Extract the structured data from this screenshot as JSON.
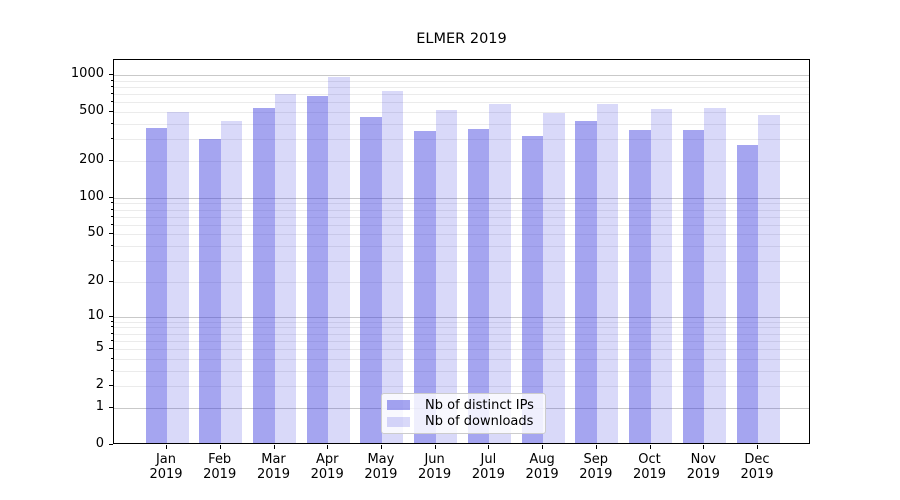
{
  "chart_data": {
    "type": "bar",
    "title": "ELMER 2019",
    "categories": [
      "Jan",
      "Feb",
      "Mar",
      "Apr",
      "May",
      "Jun",
      "Jul",
      "Aug",
      "Sep",
      "Oct",
      "Nov",
      "Dec"
    ],
    "category_year": "2019",
    "series": [
      {
        "name": "Nb of distinct IPs",
        "color": "rgba(55,55,222,0.45)",
        "values": [
          355,
          293,
          520,
          645,
          435,
          340,
          350,
          310,
          410,
          345,
          345,
          260
        ]
      },
      {
        "name": "Nb of downloads",
        "color": "rgba(55,55,222,0.19)",
        "values": [
          480,
          410,
          680,
          920,
          715,
          500,
          555,
          475,
          560,
          505,
          520,
          455
        ]
      }
    ],
    "yscale": "log1p",
    "ylim": [
      0,
      1320
    ],
    "yticks": [
      {
        "value": 1000,
        "label": "1000",
        "major": true
      },
      {
        "value": 500,
        "label": "500",
        "major": false
      },
      {
        "value": 200,
        "label": "200",
        "major": false
      },
      {
        "value": 100,
        "label": "100",
        "major": true
      },
      {
        "value": 50,
        "label": "50",
        "major": false
      },
      {
        "value": 20,
        "label": "20",
        "major": false
      },
      {
        "value": 10,
        "label": "10",
        "major": true
      },
      {
        "value": 5,
        "label": "5",
        "major": false
      },
      {
        "value": 2,
        "label": "2",
        "major": false
      },
      {
        "value": 1,
        "label": "1",
        "major": true
      },
      {
        "value": 0,
        "label": "0",
        "major": false
      }
    ],
    "minor_gridlines": [
      3,
      4,
      6,
      7,
      8,
      9,
      30,
      40,
      60,
      70,
      80,
      90,
      300,
      400,
      600,
      700,
      800,
      900
    ],
    "grid": true,
    "legend_position": "lower-center"
  },
  "colors": {
    "major_grid": "#c9c9c9",
    "minor_grid": "#ebebeb",
    "axis": "#000000",
    "legend_border": "#cccccc"
  }
}
